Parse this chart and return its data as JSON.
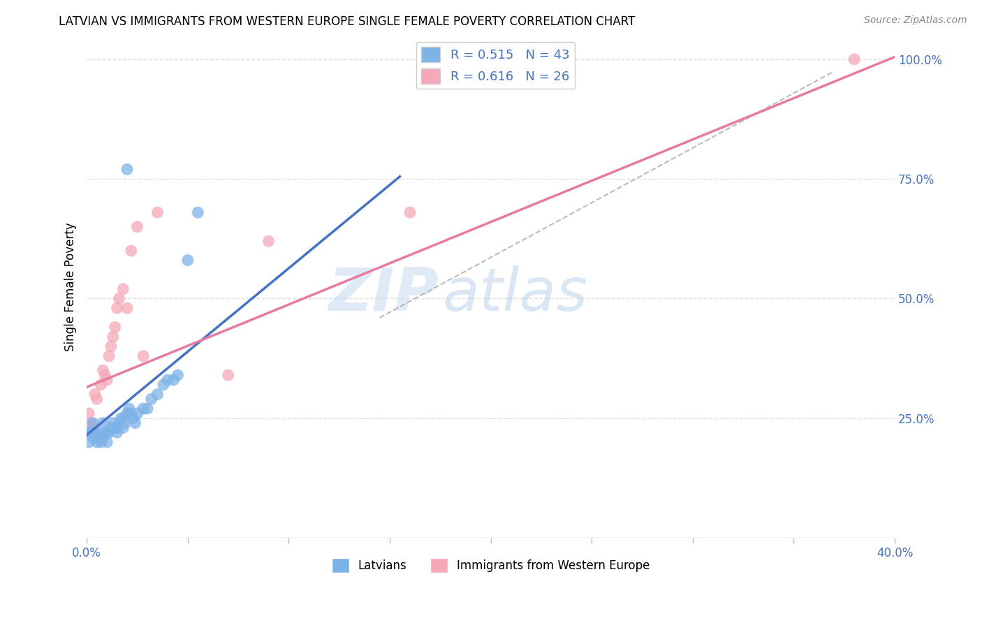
{
  "title": "LATVIAN VS IMMIGRANTS FROM WESTERN EUROPE SINGLE FEMALE POVERTY CORRELATION CHART",
  "source": "Source: ZipAtlas.com",
  "ylabel": "Single Female Poverty",
  "xlim": [
    0.0,
    0.4
  ],
  "ylim": [
    0.0,
    1.05
  ],
  "x_ticks": [
    0.0,
    0.05,
    0.1,
    0.15,
    0.2,
    0.25,
    0.3,
    0.35,
    0.4
  ],
  "y_ticks_right": [
    0.25,
    0.5,
    0.75,
    1.0
  ],
  "y_tick_labels_right": [
    "25.0%",
    "50.0%",
    "75.0%",
    "100.0%"
  ],
  "latvian_color": "#7EB3E8",
  "immigrant_color": "#F4A8B8",
  "latvian_R": 0.515,
  "latvian_N": 43,
  "immigrant_R": 0.616,
  "immigrant_N": 26,
  "background_color": "#ffffff",
  "grid_color": "#DDDDDD",
  "legend_label_1": "Latvians",
  "legend_label_2": "Immigrants from Western Europe",
  "watermark_zip": "ZIP",
  "watermark_atlas": "atlas",
  "latvian_x": [
    0.001,
    0.002,
    0.002,
    0.003,
    0.003,
    0.004,
    0.005,
    0.005,
    0.006,
    0.007,
    0.008,
    0.008,
    0.009,
    0.01,
    0.01,
    0.011,
    0.012,
    0.013,
    0.014,
    0.015,
    0.015,
    0.016,
    0.017,
    0.018,
    0.018,
    0.019,
    0.02,
    0.021,
    0.022,
    0.023,
    0.024,
    0.025,
    0.028,
    0.03,
    0.032,
    0.035,
    0.038,
    0.04,
    0.043,
    0.045,
    0.05,
    0.055,
    0.02
  ],
  "latvian_y": [
    0.2,
    0.22,
    0.22,
    0.21,
    0.24,
    0.22,
    0.2,
    0.22,
    0.21,
    0.2,
    0.21,
    0.24,
    0.22,
    0.2,
    0.22,
    0.22,
    0.23,
    0.24,
    0.23,
    0.23,
    0.22,
    0.24,
    0.25,
    0.23,
    0.25,
    0.24,
    0.26,
    0.27,
    0.26,
    0.25,
    0.24,
    0.26,
    0.27,
    0.27,
    0.29,
    0.3,
    0.32,
    0.33,
    0.33,
    0.34,
    0.58,
    0.68,
    0.77
  ],
  "immigrant_x": [
    0.001,
    0.001,
    0.002,
    0.003,
    0.004,
    0.005,
    0.007,
    0.008,
    0.009,
    0.01,
    0.011,
    0.012,
    0.013,
    0.014,
    0.015,
    0.016,
    0.018,
    0.02,
    0.022,
    0.025,
    0.028,
    0.035,
    0.07,
    0.09,
    0.16,
    0.38
  ],
  "immigrant_y": [
    0.22,
    0.26,
    0.24,
    0.23,
    0.3,
    0.29,
    0.32,
    0.35,
    0.34,
    0.33,
    0.38,
    0.4,
    0.42,
    0.44,
    0.48,
    0.5,
    0.52,
    0.48,
    0.6,
    0.65,
    0.38,
    0.68,
    0.34,
    0.62,
    0.68,
    1.0
  ],
  "blue_line_x": [
    0.0,
    0.155
  ],
  "blue_line_y": [
    0.215,
    0.755
  ],
  "pink_line_x": [
    0.0,
    0.4
  ],
  "pink_line_y": [
    0.315,
    1.005
  ],
  "diag_line_x": [
    0.145,
    0.37
  ],
  "diag_line_y": [
    0.46,
    0.975
  ]
}
